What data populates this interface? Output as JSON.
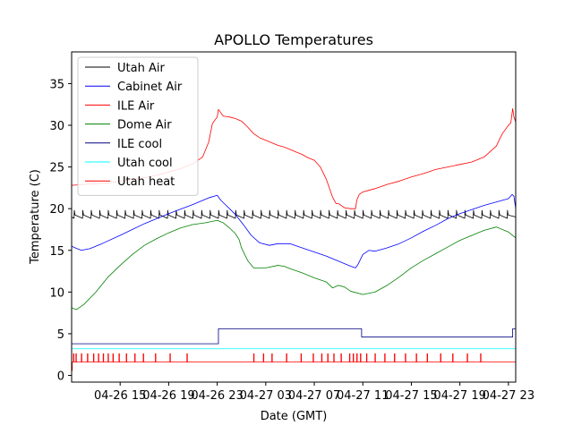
{
  "chart_data": {
    "type": "line",
    "title": "APOLLO Temperatures",
    "xlabel": "Date (GMT)",
    "ylabel": "Temperature (C)",
    "x_unit": "hours since 04-26 00:00 GMT",
    "xlim": [
      11.0,
      47.6
    ],
    "ylim": [
      -0.8,
      38.8
    ],
    "yticks": [
      0,
      5,
      10,
      15,
      20,
      25,
      30,
      35
    ],
    "xticks": [
      {
        "value": 15,
        "label": "04-26 15"
      },
      {
        "value": 19,
        "label": "04-26 19"
      },
      {
        "value": 23,
        "label": "04-26 23"
      },
      {
        "value": 27,
        "label": "04-27 03"
      },
      {
        "value": 31,
        "label": "04-27 07"
      },
      {
        "value": 35,
        "label": "04-27 11"
      },
      {
        "value": 39,
        "label": "04-27 15"
      },
      {
        "value": 43,
        "label": "04-27 19"
      },
      {
        "value": 47,
        "label": "04-27 23"
      }
    ],
    "legend_position": "top-left",
    "series": [
      {
        "name": "Utah Air",
        "color": "#000000",
        "style": "sawtooth",
        "x": [
          11.0,
          47.6
        ],
        "y": [
          19.0,
          19.0
        ],
        "amplitude": 0.8,
        "pulse_x": [
          11.2,
          11.9,
          12.6,
          13.3,
          14.0,
          14.7,
          15.4,
          16.1,
          16.8,
          17.5,
          18.2,
          18.9,
          19.6,
          20.3,
          21.0,
          21.7,
          22.4,
          23.1,
          23.8,
          24.5,
          25.2,
          25.9,
          26.6,
          27.3,
          28.0,
          28.7,
          29.4,
          30.1,
          30.8,
          31.5,
          32.2,
          32.9,
          33.6,
          34.3,
          35.0,
          35.7,
          36.4,
          37.1,
          37.8,
          38.5,
          39.2,
          39.9,
          40.6,
          41.3,
          42.0,
          42.7,
          43.4,
          44.1,
          44.8,
          45.5,
          46.2,
          46.9
        ]
      },
      {
        "name": "Cabinet Air",
        "color": "#0000ff",
        "x": [
          11.0,
          11.3,
          11.8,
          12.5,
          13.5,
          15.0,
          17.0,
          19.0,
          21.0,
          22.3,
          23.0,
          23.3,
          23.8,
          24.5,
          25.2,
          25.8,
          26.5,
          27.3,
          28.0,
          29.0,
          30.0,
          31.0,
          32.0,
          33.0,
          34.0,
          34.4,
          34.6,
          35.0,
          35.5,
          36.0,
          37.0,
          38.0,
          39.0,
          40.0,
          41.0,
          42.0,
          43.0,
          44.0,
          45.0,
          46.0,
          47.0,
          47.3,
          47.45,
          47.6
        ],
        "y": [
          15.5,
          15.3,
          15.0,
          15.2,
          15.8,
          16.8,
          18.2,
          19.4,
          20.5,
          21.3,
          21.6,
          21.0,
          20.3,
          19.3,
          18.0,
          16.8,
          15.9,
          15.6,
          15.8,
          15.8,
          15.3,
          14.8,
          14.3,
          13.7,
          13.1,
          12.9,
          13.3,
          14.5,
          15.0,
          14.9,
          15.3,
          15.8,
          16.5,
          17.3,
          18.0,
          18.8,
          19.4,
          19.9,
          20.4,
          20.8,
          21.2,
          21.7,
          21.5,
          20.0
        ]
      },
      {
        "name": "ILE Air",
        "color": "#ff0000",
        "x": [
          11.0,
          12.0,
          13.0,
          14.0,
          15.0,
          16.0,
          17.0,
          18.0,
          19.0,
          20.0,
          21.0,
          21.8,
          22.3,
          22.6,
          23.0,
          23.1,
          23.5,
          24.0,
          24.5,
          25.0,
          25.5,
          26.0,
          26.5,
          27.0,
          27.5,
          28.0,
          28.5,
          29.0,
          29.5,
          30.0,
          30.5,
          31.0,
          31.5,
          32.0,
          32.5,
          32.8,
          33.0,
          33.2,
          33.5,
          34.0,
          34.4,
          34.5,
          34.7,
          35.0,
          35.5,
          36.0,
          37.0,
          38.0,
          39.0,
          40.0,
          41.0,
          42.0,
          43.0,
          44.0,
          45.0,
          46.0,
          46.5,
          47.0,
          47.2,
          47.35,
          47.45,
          47.6
        ],
        "y": [
          22.8,
          22.9,
          23.0,
          23.1,
          23.3,
          23.5,
          23.7,
          24.0,
          24.4,
          24.8,
          25.4,
          26.2,
          28.0,
          30.2,
          31.0,
          31.9,
          31.1,
          31.0,
          30.8,
          30.5,
          29.8,
          29.0,
          28.5,
          28.2,
          27.9,
          27.6,
          27.4,
          27.1,
          26.8,
          26.5,
          26.1,
          25.8,
          25.0,
          23.5,
          21.4,
          20.6,
          20.6,
          20.4,
          20.1,
          20.0,
          20.0,
          21.0,
          21.7,
          22.0,
          22.2,
          22.4,
          22.9,
          23.3,
          23.8,
          24.2,
          24.7,
          25.0,
          25.3,
          25.6,
          26.2,
          27.5,
          29.0,
          30.0,
          30.3,
          32.0,
          31.0,
          30.4
        ]
      },
      {
        "name": "Dome Air",
        "color": "#008000",
        "x": [
          11.0,
          11.4,
          12.0,
          13.0,
          14.0,
          15.0,
          16.0,
          17.0,
          18.0,
          19.0,
          20.0,
          21.0,
          22.0,
          23.0,
          23.5,
          24.0,
          24.5,
          24.8,
          25.0,
          25.5,
          26.0,
          27.0,
          28.0,
          28.5,
          29.0,
          30.0,
          31.0,
          32.0,
          32.5,
          33.0,
          33.5,
          34.0,
          35.0,
          36.0,
          37.0,
          38.0,
          39.0,
          40.0,
          41.0,
          42.0,
          43.0,
          44.0,
          45.0,
          46.0,
          47.0,
          47.6
        ],
        "y": [
          8.1,
          7.9,
          8.5,
          10.0,
          11.8,
          13.2,
          14.5,
          15.6,
          16.4,
          17.1,
          17.7,
          18.1,
          18.3,
          18.6,
          18.3,
          17.7,
          17.0,
          16.3,
          15.3,
          13.8,
          12.9,
          12.9,
          13.2,
          13.1,
          12.8,
          12.3,
          11.7,
          11.2,
          10.5,
          10.8,
          10.6,
          10.1,
          9.7,
          10.0,
          10.8,
          11.8,
          12.9,
          13.8,
          14.6,
          15.4,
          16.2,
          16.8,
          17.4,
          17.8,
          17.2,
          16.5
        ]
      },
      {
        "name": "ILE cool",
        "color": "#000080",
        "x": [
          11.0,
          23.1,
          23.1,
          34.9,
          34.9,
          47.35,
          47.35,
          47.6
        ],
        "y": [
          3.8,
          3.8,
          5.6,
          5.6,
          4.6,
          4.6,
          5.6,
          5.6
        ]
      },
      {
        "name": "Utah cool",
        "color": "#00ffff",
        "x": [
          11.0,
          47.6
        ],
        "y": [
          3.2,
          3.2
        ]
      },
      {
        "name": "Utah heat",
        "color": "#ff0000",
        "style": "pulses",
        "x": [
          11.0,
          47.6
        ],
        "y": [
          1.6,
          1.6
        ],
        "pulse_height": 1.0,
        "pulse_x": [
          11.15,
          11.35,
          11.8,
          12.3,
          12.8,
          13.2,
          13.6,
          14.0,
          14.4,
          14.9,
          15.5,
          16.2,
          16.9,
          17.9,
          19.1,
          20.5,
          26.0,
          26.8,
          27.5,
          28.7,
          29.9,
          30.9,
          31.6,
          32.1,
          32.6,
          33.2,
          33.9,
          34.2,
          34.5,
          34.8,
          35.3,
          36.0,
          36.8,
          37.6,
          38.5,
          39.4,
          40.3,
          41.4,
          42.4,
          43.6,
          44.7
        ]
      }
    ]
  }
}
